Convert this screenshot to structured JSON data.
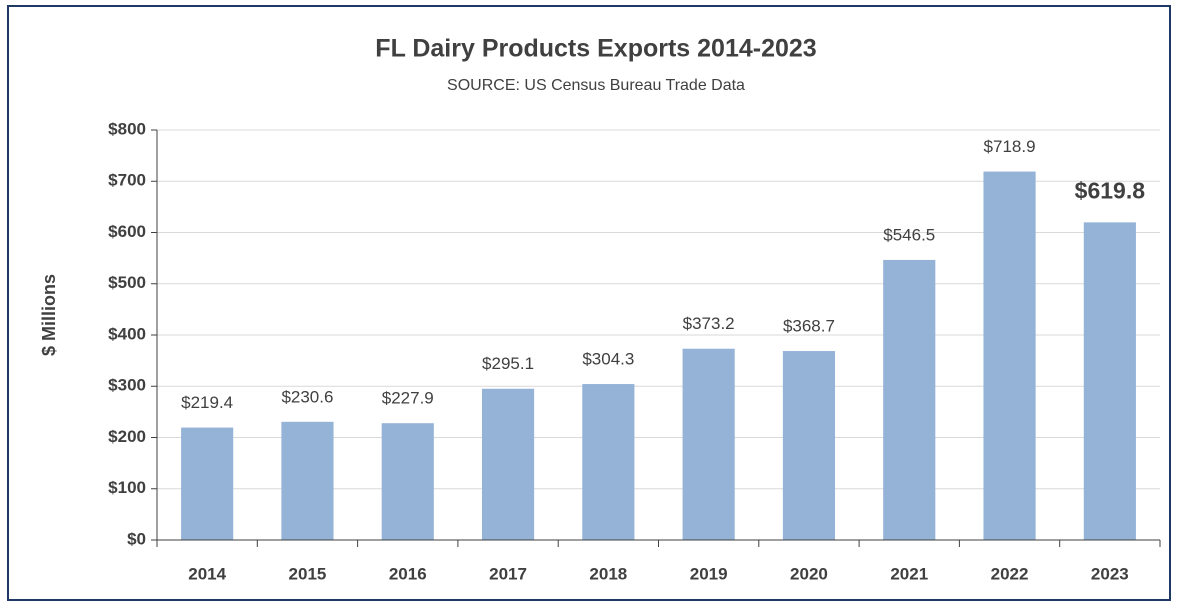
{
  "chart_data": {
    "type": "bar",
    "title": "FL Dairy Products Exports 2014-2023",
    "subtitle": "SOURCE: US Census Bureau Trade Data",
    "y_label": "$ Millions",
    "categories": [
      "2014",
      "2015",
      "2016",
      "2017",
      "2018",
      "2019",
      "2020",
      "2021",
      "2022",
      "2023"
    ],
    "values": [
      219.4,
      230.6,
      227.9,
      295.1,
      304.3,
      373.2,
      368.7,
      546.5,
      718.9,
      619.8
    ],
    "value_labels": [
      "$219.4",
      "$230.6",
      "$227.9",
      "$295.1",
      "$304.3",
      "$373.2",
      "$368.7",
      "$546.5",
      "$718.9",
      "$619.8"
    ],
    "color": "#95b3d7",
    "ylim": [
      0,
      800
    ],
    "yticks": [
      {
        "value": 0,
        "label": "$0"
      },
      {
        "value": 100,
        "label": "$100"
      },
      {
        "value": 200,
        "label": "$200"
      },
      {
        "value": 300,
        "label": "$300"
      },
      {
        "value": 400,
        "label": "$400"
      },
      {
        "value": 500,
        "label": "$500"
      },
      {
        "value": 600,
        "label": "$600"
      },
      {
        "value": 700,
        "label": "$700"
      },
      {
        "value": 800,
        "label": "$800"
      }
    ],
    "grid": true
  }
}
